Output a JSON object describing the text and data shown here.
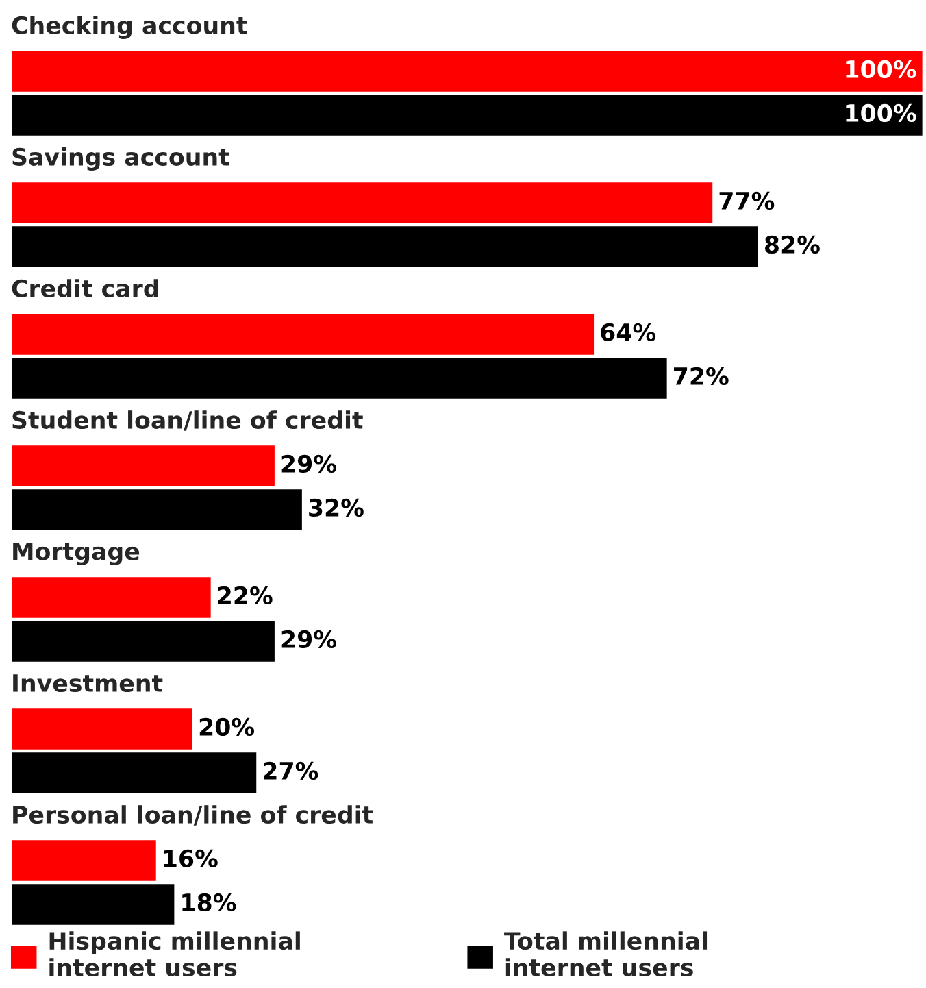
{
  "chart_data": {
    "type": "bar",
    "orientation": "horizontal",
    "categories": [
      "Checking account",
      "Savings account",
      "Credit card",
      "Student loan/line of credit",
      "Mortgage",
      "Investment",
      "Personal loan/line of credit"
    ],
    "series": [
      {
        "name": "Hispanic millennial internet users",
        "color": "#ff0000",
        "values": [
          100,
          77,
          64,
          29,
          22,
          20,
          16
        ],
        "value_labels": [
          "100%",
          "77%",
          "64%",
          "29%",
          "22%",
          "20%",
          "16%"
        ]
      },
      {
        "name": "Total millennial internet users",
        "color": "#000000",
        "values": [
          100,
          82,
          72,
          32,
          29,
          27,
          18
        ],
        "value_labels": [
          "100%",
          "82%",
          "72%",
          "32%",
          "29%",
          "27%",
          "18%"
        ]
      }
    ],
    "legend": "bottom"
  }
}
